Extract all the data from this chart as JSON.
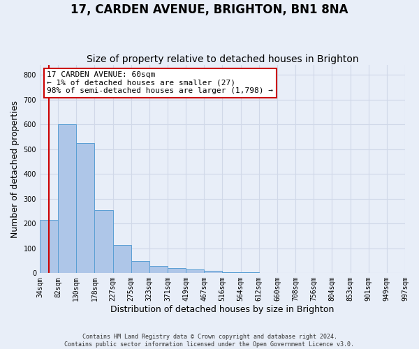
{
  "title": "17, CARDEN AVENUE, BRIGHTON, BN1 8NA",
  "subtitle": "Size of property relative to detached houses in Brighton",
  "xlabel": "Distribution of detached houses by size in Brighton",
  "ylabel": "Number of detached properties",
  "footer_line1": "Contains HM Land Registry data © Crown copyright and database right 2024.",
  "footer_line2": "Contains public sector information licensed under the Open Government Licence v3.0.",
  "bin_labels": [
    "34sqm",
    "82sqm",
    "130sqm",
    "178sqm",
    "227sqm",
    "275sqm",
    "323sqm",
    "371sqm",
    "419sqm",
    "467sqm",
    "516sqm",
    "564sqm",
    "612sqm",
    "660sqm",
    "708sqm",
    "756sqm",
    "804sqm",
    "853sqm",
    "901sqm",
    "949sqm",
    "997sqm"
  ],
  "bar_heights": [
    215,
    600,
    525,
    255,
    115,
    50,
    30,
    20,
    15,
    8,
    5,
    3,
    2,
    1,
    1,
    1,
    1,
    1,
    0,
    0,
    0
  ],
  "bar_color": "#aec6e8",
  "bar_edge_color": "#5a9fd4",
  "grid_color": "#d0d8e8",
  "annotation_line1": "17 CARDEN AVENUE: 60sqm",
  "annotation_line2": "← 1% of detached houses are smaller (27)",
  "annotation_line3": "98% of semi-detached houses are larger (1,798) →",
  "annotation_box_color": "#ffffff",
  "annotation_box_edge_color": "#cc0000",
  "red_line_color": "#cc0000",
  "red_line_x": 0.5,
  "ylim": [
    0,
    840
  ],
  "yticks": [
    0,
    100,
    200,
    300,
    400,
    500,
    600,
    700,
    800
  ],
  "background_color": "#e8eef8",
  "title_fontsize": 12,
  "subtitle_fontsize": 10,
  "tick_fontsize": 7,
  "ylabel_fontsize": 9,
  "xlabel_fontsize": 9,
  "annotation_fontsize": 8
}
